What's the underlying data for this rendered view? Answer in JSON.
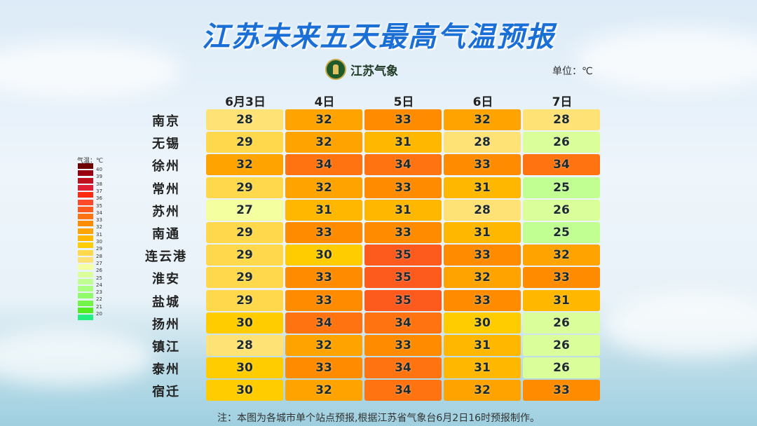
{
  "title": "江苏未来五天最高气温预报",
  "logo_text": "江苏气象",
  "unit_label": "单位：℃",
  "note": "注：本图为各城市单个站点预报,根据江苏省气象台6月2日16时预报制作。",
  "chart_data": {
    "type": "heatmap",
    "title": "江苏未来五天最高气温预报",
    "unit": "℃",
    "columns": [
      "6月3日",
      "4日",
      "5日",
      "6日",
      "7日"
    ],
    "rows": [
      "南京",
      "无锡",
      "徐州",
      "常州",
      "苏州",
      "南通",
      "连云港",
      "淮安",
      "盐城",
      "扬州",
      "镇江",
      "泰州",
      "宿迁"
    ],
    "values": [
      [
        28,
        32,
        33,
        32,
        28
      ],
      [
        29,
        32,
        31,
        28,
        26
      ],
      [
        32,
        34,
        34,
        33,
        34
      ],
      [
        29,
        32,
        33,
        31,
        25
      ],
      [
        27,
        31,
        31,
        28,
        26
      ],
      [
        29,
        33,
        33,
        31,
        25
      ],
      [
        29,
        30,
        35,
        33,
        32
      ],
      [
        29,
        33,
        35,
        32,
        33
      ],
      [
        29,
        33,
        35,
        33,
        31
      ],
      [
        30,
        34,
        34,
        30,
        26
      ],
      [
        28,
        32,
        33,
        31,
        26
      ],
      [
        30,
        33,
        34,
        31,
        26
      ],
      [
        30,
        32,
        34,
        32,
        33
      ]
    ],
    "legend": {
      "title": "气温：℃",
      "placement": "left",
      "levels": [
        40,
        39,
        38,
        37,
        36,
        35,
        34,
        33,
        32,
        31,
        30,
        29,
        28,
        27,
        26,
        25,
        24,
        23,
        22,
        21,
        20
      ],
      "colors": {
        "41": "#6e0000",
        "40": "#9a0010",
        "39": "#bf1020",
        "38": "#e01f35",
        "37": "#ff2a10",
        "36": "#ff4a2a",
        "35": "#fd5a1e",
        "34": "#ff7410",
        "33": "#ff8c00",
        "32": "#ffa300",
        "31": "#ffb700",
        "30": "#ffcc00",
        "29": "#ffd84c",
        "28": "#ffe275",
        "27": "#f4ffa0",
        "26": "#daff9a",
        "25": "#c2ff92",
        "24": "#aaff80",
        "23": "#92fb6a",
        "22": "#74f448",
        "21": "#52ec20",
        "20": "#25ee80"
      }
    }
  }
}
